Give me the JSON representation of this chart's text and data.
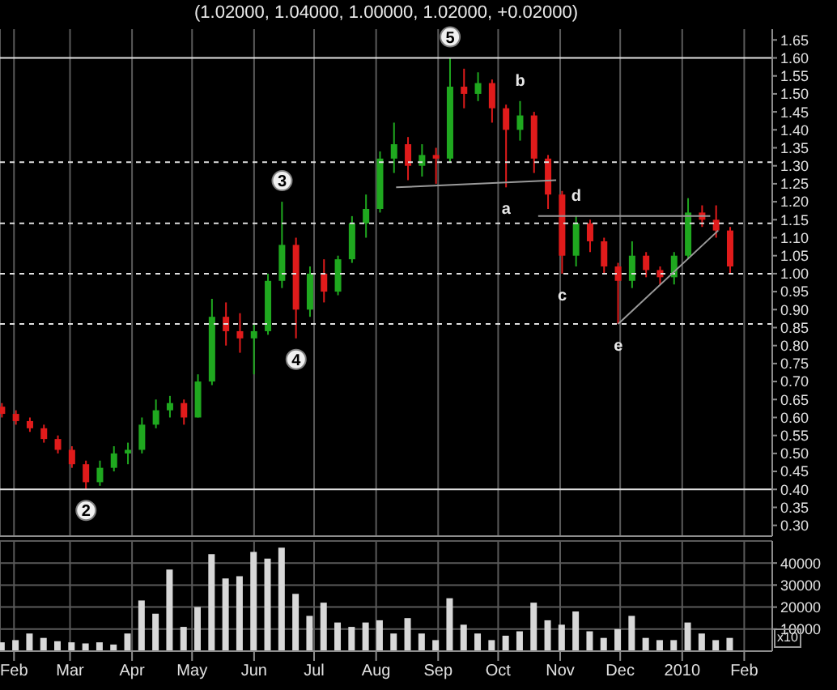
{
  "chart_data": [
    {
      "type": "candlestick",
      "title": "(1.02000, 1.04000, 1.00000, 1.02000, +0.02000)",
      "x": [
        "2009-01-26",
        "2009-02-02",
        "2009-02-09",
        "2009-02-16",
        "2009-02-23",
        "2009-03-02",
        "2009-03-09",
        "2009-03-16",
        "2009-03-23",
        "2009-03-30",
        "2009-04-06",
        "2009-04-13",
        "2009-04-20",
        "2009-04-27",
        "2009-05-04",
        "2009-05-11",
        "2009-05-18",
        "2009-05-25",
        "2009-06-01",
        "2009-06-08",
        "2009-06-15",
        "2009-06-22",
        "2009-06-29",
        "2009-07-06",
        "2009-07-13",
        "2009-07-20",
        "2009-07-27",
        "2009-08-03",
        "2009-08-10",
        "2009-08-17",
        "2009-08-24",
        "2009-08-31",
        "2009-09-07",
        "2009-09-14",
        "2009-09-21",
        "2009-09-28",
        "2009-10-05",
        "2009-10-12",
        "2009-10-19",
        "2009-10-26",
        "2009-11-02",
        "2009-11-09",
        "2009-11-16",
        "2009-11-23",
        "2009-11-30",
        "2009-12-07",
        "2009-12-14",
        "2009-12-21",
        "2009-12-28",
        "2010-01-04",
        "2010-01-11",
        "2010-01-18",
        "2010-01-25"
      ],
      "ohlc": [
        [
          0.63,
          0.64,
          0.6,
          0.61
        ],
        [
          0.61,
          0.62,
          0.58,
          0.59
        ],
        [
          0.59,
          0.6,
          0.56,
          0.57
        ],
        [
          0.57,
          0.58,
          0.53,
          0.54
        ],
        [
          0.54,
          0.55,
          0.5,
          0.51
        ],
        [
          0.51,
          0.52,
          0.46,
          0.47
        ],
        [
          0.47,
          0.48,
          0.4,
          0.42
        ],
        [
          0.42,
          0.48,
          0.41,
          0.46
        ],
        [
          0.46,
          0.52,
          0.45,
          0.5
        ],
        [
          0.5,
          0.53,
          0.47,
          0.51
        ],
        [
          0.51,
          0.6,
          0.5,
          0.58
        ],
        [
          0.58,
          0.65,
          0.57,
          0.62
        ],
        [
          0.62,
          0.66,
          0.6,
          0.64
        ],
        [
          0.64,
          0.65,
          0.58,
          0.6
        ],
        [
          0.6,
          0.72,
          0.6,
          0.7
        ],
        [
          0.7,
          0.93,
          0.69,
          0.88
        ],
        [
          0.88,
          0.92,
          0.8,
          0.84
        ],
        [
          0.84,
          0.89,
          0.78,
          0.82
        ],
        [
          0.82,
          0.86,
          0.72,
          0.84
        ],
        [
          0.84,
          1.0,
          0.83,
          0.98
        ],
        [
          0.98,
          1.2,
          0.96,
          1.08
        ],
        [
          1.08,
          1.1,
          0.82,
          0.9
        ],
        [
          0.9,
          1.02,
          0.88,
          1.0
        ],
        [
          1.0,
          1.04,
          0.92,
          0.95
        ],
        [
          0.95,
          1.05,
          0.94,
          1.04
        ],
        [
          1.04,
          1.16,
          1.03,
          1.14
        ],
        [
          1.14,
          1.22,
          1.1,
          1.18
        ],
        [
          1.18,
          1.34,
          1.17,
          1.32
        ],
        [
          1.32,
          1.42,
          1.28,
          1.36
        ],
        [
          1.36,
          1.38,
          1.26,
          1.3
        ],
        [
          1.3,
          1.36,
          1.27,
          1.33
        ],
        [
          1.33,
          1.35,
          1.25,
          1.32
        ],
        [
          1.32,
          1.6,
          1.31,
          1.52
        ],
        [
          1.52,
          1.57,
          1.46,
          1.5
        ],
        [
          1.5,
          1.56,
          1.48,
          1.53
        ],
        [
          1.53,
          1.54,
          1.42,
          1.46
        ],
        [
          1.46,
          1.47,
          1.24,
          1.4
        ],
        [
          1.4,
          1.48,
          1.37,
          1.44
        ],
        [
          1.44,
          1.45,
          1.28,
          1.32
        ],
        [
          1.32,
          1.33,
          1.18,
          1.22
        ],
        [
          1.22,
          1.23,
          1.0,
          1.05
        ],
        [
          1.05,
          1.16,
          1.02,
          1.14
        ],
        [
          1.14,
          1.15,
          1.06,
          1.09
        ],
        [
          1.09,
          1.1,
          1.0,
          1.02
        ],
        [
          1.02,
          1.03,
          0.86,
          0.98
        ],
        [
          0.98,
          1.09,
          0.96,
          1.05
        ],
        [
          1.05,
          1.06,
          0.99,
          1.01
        ],
        [
          1.01,
          1.02,
          0.97,
          0.99
        ],
        [
          0.99,
          1.06,
          0.97,
          1.05
        ],
        [
          1.05,
          1.21,
          1.04,
          1.17
        ],
        [
          1.17,
          1.19,
          1.13,
          1.15
        ],
        [
          1.15,
          1.19,
          1.1,
          1.12
        ],
        [
          1.12,
          1.13,
          1.0,
          1.02
        ]
      ],
      "colors": [
        "#e01b1b",
        "#e01b1b",
        "#e01b1b",
        "#e01b1b",
        "#e01b1b",
        "#e01b1b",
        "#e01b1b",
        "#1fa81f",
        "#1fa81f",
        "#1fa81f",
        "#1fa81f",
        "#1fa81f",
        "#1fa81f",
        "#e01b1b",
        "#1fa81f",
        "#1fa81f",
        "#e01b1b",
        "#e01b1b",
        "#1fa81f",
        "#1fa81f",
        "#1fa81f",
        "#e01b1b",
        "#1fa81f",
        "#e01b1b",
        "#1fa81f",
        "#1fa81f",
        "#1fa81f",
        "#1fa81f",
        "#1fa81f",
        "#e01b1b",
        "#1fa81f",
        "#e01b1b",
        "#1fa81f",
        "#e01b1b",
        "#1fa81f",
        "#e01b1b",
        "#e01b1b",
        "#1fa81f",
        "#e01b1b",
        "#e01b1b",
        "#e01b1b",
        "#1fa81f",
        "#e01b1b",
        "#e01b1b",
        "#e01b1b",
        "#1fa81f",
        "#e01b1b",
        "#e01b1b",
        "#1fa81f",
        "#1fa81f",
        "#e01b1b",
        "#e01b1b",
        "#e01b1b"
      ],
      "series": [
        {
          "type": "line",
          "color": "#9a9a9a",
          "x": [
            "2009-08-11",
            "2009-10-30"
          ],
          "values": [
            1.24,
            1.26
          ]
        },
        {
          "type": "line",
          "color": "#9a9a9a",
          "x": [
            "2009-10-21",
            "2010-01-15"
          ],
          "values": [
            1.16,
            1.16
          ]
        },
        {
          "type": "line",
          "color": "#9a9a9a",
          "x": [
            "2009-11-30",
            "2010-01-19"
          ],
          "values": [
            0.86,
            1.12
          ]
        }
      ],
      "ref_lines": [
        {
          "axis": "y",
          "value": 1.6,
          "color": "#e0e0e0",
          "line_style": "solid"
        },
        {
          "axis": "y",
          "value": 1.31,
          "color": "#e0e0e0",
          "line_style": "dashed"
        },
        {
          "axis": "y",
          "value": 1.14,
          "color": "#e0e0e0",
          "line_style": "dashed"
        },
        {
          "axis": "y",
          "value": 1.0,
          "color": "#e0e0e0",
          "line_style": "dashed"
        },
        {
          "axis": "y",
          "value": 0.86,
          "color": "#e0e0e0",
          "line_style": "dashed"
        },
        {
          "axis": "y",
          "value": 0.4,
          "color": "#e0e0e0",
          "line_style": "solid"
        }
      ],
      "annotations": [
        {
          "text": "2",
          "x": "2009-03-09",
          "y": 0.4
        },
        {
          "text": "3",
          "x": "2009-06-15",
          "y": 1.2
        },
        {
          "text": "4",
          "x": "2009-06-22",
          "y": 0.82
        },
        {
          "text": "5",
          "x": "2009-09-07",
          "y": 1.6
        },
        {
          "text": "a",
          "x": "2009-10-05",
          "y": 1.24
        },
        {
          "text": "b",
          "x": "2009-10-12",
          "y": 1.48
        },
        {
          "text": "c",
          "x": "2009-11-02",
          "y": 1.0
        },
        {
          "text": "d",
          "x": "2009-11-09",
          "y": 1.16
        },
        {
          "text": "e",
          "x": "2009-11-30",
          "y": 0.86
        }
      ],
      "xlim": [
        "2009-01-25",
        "2010-02-15"
      ],
      "xticks": [
        {
          "value": "2009-02-01",
          "label": null
        },
        {
          "value": "2009-03-01",
          "label": null
        },
        {
          "value": "2009-04-01",
          "label": null
        },
        {
          "value": "2009-05-01",
          "label": null
        },
        {
          "value": "2009-06-01",
          "label": null
        },
        {
          "value": "2009-07-01",
          "label": null
        },
        {
          "value": "2009-08-01",
          "label": null
        },
        {
          "value": "2009-09-01",
          "label": null
        },
        {
          "value": "2009-10-01",
          "label": null
        },
        {
          "value": "2009-11-01",
          "label": null
        },
        {
          "value": "2009-12-01",
          "label": null
        },
        {
          "value": "2010-01-01",
          "label": null
        },
        {
          "value": "2010-02-01",
          "label": null
        }
      ],
      "ylim": [
        0.27,
        1.68
      ],
      "yticks": [
        {
          "value": 0.3,
          "label": "0.30"
        },
        {
          "value": 0.35,
          "label": "0.35"
        },
        {
          "value": 0.4,
          "label": "0.40"
        },
        {
          "value": 0.45,
          "label": "0.45"
        },
        {
          "value": 0.5,
          "label": "0.50"
        },
        {
          "value": 0.55,
          "label": "0.55"
        },
        {
          "value": 0.6,
          "label": "0.60"
        },
        {
          "value": 0.65,
          "label": "0.65"
        },
        {
          "value": 0.7,
          "label": "0.70"
        },
        {
          "value": 0.75,
          "label": "0.75"
        },
        {
          "value": 0.8,
          "label": "0.80"
        },
        {
          "value": 0.85,
          "label": "0.85"
        },
        {
          "value": 0.9,
          "label": "0.90"
        },
        {
          "value": 0.95,
          "label": "0.95"
        },
        {
          "value": 1.0,
          "label": "1.00"
        },
        {
          "value": 1.05,
          "label": "1.05"
        },
        {
          "value": 1.1,
          "label": "1.10"
        },
        {
          "value": 1.15,
          "label": "1.15"
        },
        {
          "value": 1.2,
          "label": "1.20"
        },
        {
          "value": 1.25,
          "label": "1.25"
        },
        {
          "value": 1.3,
          "label": "1.30"
        },
        {
          "value": 1.35,
          "label": "1.35"
        },
        {
          "value": 1.4,
          "label": "1.40"
        },
        {
          "value": 1.45,
          "label": "1.45"
        },
        {
          "value": 1.5,
          "label": "1.50"
        },
        {
          "value": 1.55,
          "label": "1.55"
        },
        {
          "value": 1.6,
          "label": "1.60"
        },
        {
          "value": 1.65,
          "label": "1.65"
        }
      ],
      "grid": "x",
      "tick_labels": "y"
    },
    {
      "type": "bar",
      "color": "#d8d8d8",
      "x": [
        "2009-01-26",
        "2009-02-02",
        "2009-02-09",
        "2009-02-16",
        "2009-02-23",
        "2009-03-02",
        "2009-03-09",
        "2009-03-16",
        "2009-03-23",
        "2009-03-30",
        "2009-04-06",
        "2009-04-13",
        "2009-04-20",
        "2009-04-27",
        "2009-05-04",
        "2009-05-11",
        "2009-05-18",
        "2009-05-25",
        "2009-06-01",
        "2009-06-08",
        "2009-06-15",
        "2009-06-22",
        "2009-06-29",
        "2009-07-06",
        "2009-07-13",
        "2009-07-20",
        "2009-07-27",
        "2009-08-03",
        "2009-08-10",
        "2009-08-17",
        "2009-08-24",
        "2009-08-31",
        "2009-09-07",
        "2009-09-14",
        "2009-09-21",
        "2009-09-28",
        "2009-10-05",
        "2009-10-12",
        "2009-10-19",
        "2009-10-26",
        "2009-11-02",
        "2009-11-09",
        "2009-11-16",
        "2009-11-23",
        "2009-11-30",
        "2009-12-07",
        "2009-12-14",
        "2009-12-21",
        "2009-12-28",
        "2010-01-04",
        "2010-01-11",
        "2010-01-18",
        "2010-01-25"
      ],
      "values": [
        4000,
        5000,
        8000,
        6000,
        4500,
        4000,
        3500,
        4000,
        3000,
        8000,
        23000,
        17000,
        37000,
        11000,
        20000,
        44000,
        33000,
        34000,
        45000,
        42000,
        47000,
        26000,
        16000,
        22000,
        13000,
        11000,
        13000,
        14000,
        8000,
        15000,
        8000,
        5000,
        24000,
        12000,
        8000,
        5000,
        7000,
        9000,
        22000,
        14000,
        12000,
        18000,
        9000,
        6000,
        10000,
        16000,
        6000,
        5000,
        5000,
        13000,
        8000,
        5000,
        6000
      ],
      "annotations": [
        "x10"
      ],
      "xlim": [
        "2009-01-25",
        "2010-02-15"
      ],
      "xticks": [
        {
          "value": "2009-02-01",
          "label": "Feb"
        },
        {
          "value": "2009-03-01",
          "label": "Mar"
        },
        {
          "value": "2009-04-01",
          "label": "Apr"
        },
        {
          "value": "2009-05-01",
          "label": "May"
        },
        {
          "value": "2009-06-01",
          "label": "Jun"
        },
        {
          "value": "2009-07-01",
          "label": "Jul"
        },
        {
          "value": "2009-08-01",
          "label": "Aug"
        },
        {
          "value": "2009-09-01",
          "label": "Sep"
        },
        {
          "value": "2009-10-01",
          "label": "Oct"
        },
        {
          "value": "2009-11-01",
          "label": "Nov"
        },
        {
          "value": "2009-12-01",
          "label": "Dec"
        },
        {
          "value": "2010-01-01",
          "label": "2010"
        },
        {
          "value": "2010-02-01",
          "label": "Feb"
        }
      ],
      "ylim": [
        0,
        50000
      ],
      "yticks": [
        10000,
        20000,
        30000,
        40000
      ],
      "grid": true
    }
  ]
}
